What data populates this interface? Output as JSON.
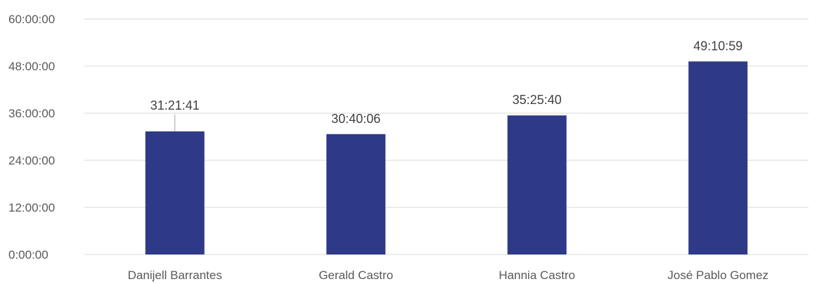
{
  "chart_data": {
    "type": "bar",
    "categories": [
      "Danijell Barrantes",
      "Gerald Castro",
      "Hannia Castro",
      "José Pablo Gomez"
    ],
    "values": [
      "31:21:41",
      "30:40:06",
      "35:25:40",
      "49:10:59"
    ],
    "data_labels": [
      "31:21:41",
      "30:40:06",
      "35:25:40",
      "49:10:59"
    ],
    "y_ticks": [
      "0:00:00",
      "12:00:00",
      "24:00:00",
      "36:00:00",
      "48:00:00",
      "60:00:00"
    ],
    "ylim": [
      "0:00:00",
      "60:00:00"
    ],
    "title": "",
    "xlabel": "",
    "ylabel": "",
    "grid": true,
    "legend": "none",
    "bar_color": "#2e3a87"
  }
}
